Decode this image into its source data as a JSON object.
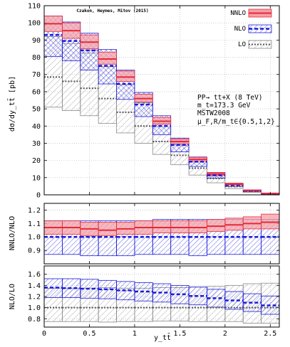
{
  "chart_data": [
    {
      "type": "bar",
      "panel": "main",
      "ylabel": "dσ/dy_tt̄ [pb]",
      "ylim": [
        0,
        110
      ],
      "yticks": [
        0,
        10,
        20,
        30,
        40,
        50,
        60,
        70,
        80,
        90,
        100,
        110
      ],
      "xlim": [
        0,
        2.6
      ],
      "bin_edges": [
        0,
        0.2,
        0.4,
        0.6,
        0.8,
        1.0,
        1.2,
        1.4,
        1.6,
        1.8,
        2.0,
        2.2,
        2.4,
        2.6
      ],
      "grid": true,
      "legend_position": "top-right",
      "credit": "Czakon, Heymes, Mitov (2015)",
      "info_lines": [
        "PP→ tt+X (8 TeV)",
        "m_t=173.3 GeV",
        "MSTW2008",
        "μ_F,R/m_t∈{0.5,1,2}"
      ],
      "series": [
        {
          "name": "NNLO",
          "color": "#e8283a",
          "central": [
            99.5,
            95.5,
            88.8,
            79.0,
            68.5,
            56.0,
            42.8,
            31.0,
            20.6,
            12.2,
            6.2,
            2.6,
            0.8
          ],
          "low": [
            95.0,
            91.0,
            85.0,
            76.0,
            66.0,
            54.0,
            41.0,
            29.5,
            19.5,
            11.5,
            5.8,
            2.3,
            0.6
          ],
          "high": [
            104.0,
            100.0,
            93.0,
            83.0,
            72.0,
            58.5,
            45.0,
            32.5,
            21.8,
            13.0,
            6.8,
            2.9,
            1.0
          ]
        },
        {
          "name": "NLO",
          "color": "#1a1adc",
          "central": [
            93.0,
            89.5,
            84.0,
            75.0,
            64.5,
            52.5,
            40.0,
            29.0,
            19.3,
            11.3,
            5.7,
            2.3,
            0.7
          ],
          "low": [
            80.5,
            78.0,
            72.5,
            64.5,
            55.5,
            45.5,
            35.0,
            25.0,
            16.5,
            9.8,
            4.9,
            2.0,
            0.5
          ],
          "high": [
            104.0,
            100.5,
            94.0,
            84.5,
            72.5,
            59.5,
            46.0,
            33.0,
            22.0,
            13.0,
            6.5,
            2.7,
            0.9
          ]
        },
        {
          "name": "LO",
          "color": "#888888",
          "central": [
            68.5,
            66.0,
            62.0,
            56.0,
            48.0,
            40.0,
            31.0,
            23.0,
            15.5,
            9.5,
            4.8,
            2.0,
            0.6
          ],
          "low": [
            51.0,
            49.0,
            46.0,
            41.5,
            36.0,
            30.0,
            23.5,
            17.5,
            11.5,
            7.0,
            3.6,
            1.4,
            0.4
          ],
          "high": [
            92.0,
            88.0,
            82.5,
            74.5,
            64.0,
            53.5,
            41.5,
            30.5,
            20.5,
            12.5,
            6.3,
            2.6,
            0.8
          ]
        }
      ]
    },
    {
      "type": "bar",
      "panel": "ratio_nnlo_nlo",
      "ylabel": "NNLO/NLO",
      "ylim": [
        0.8,
        1.25
      ],
      "yticks": [
        0.9,
        1.0,
        1.1,
        1.2
      ],
      "xlim": [
        0,
        2.6
      ],
      "grid": true,
      "series": [
        {
          "name": "NNLO",
          "color": "#e8283a",
          "central": [
            1.07,
            1.07,
            1.06,
            1.05,
            1.06,
            1.07,
            1.07,
            1.07,
            1.07,
            1.08,
            1.09,
            1.1,
            1.11
          ],
          "low": [
            1.02,
            1.02,
            1.01,
            1.01,
            1.02,
            1.02,
            1.03,
            1.03,
            1.03,
            1.04,
            1.05,
            1.06,
            1.06
          ],
          "high": [
            1.12,
            1.12,
            1.11,
            1.11,
            1.11,
            1.12,
            1.12,
            1.12,
            1.12,
            1.13,
            1.14,
            1.15,
            1.17
          ]
        },
        {
          "name": "NLO",
          "color": "#1a1adc",
          "central": [
            1.0,
            1.0,
            1.0,
            1.0,
            1.0,
            1.0,
            1.0,
            1.0,
            1.0,
            1.0,
            1.0,
            1.0,
            1.0
          ],
          "low": [
            0.87,
            0.87,
            0.86,
            0.86,
            0.86,
            0.87,
            0.87,
            0.87,
            0.86,
            0.87,
            0.87,
            0.87,
            0.87
          ],
          "high": [
            1.12,
            1.12,
            1.12,
            1.12,
            1.12,
            1.12,
            1.13,
            1.13,
            1.13,
            1.13,
            1.13,
            1.13,
            1.13
          ]
        }
      ]
    },
    {
      "type": "bar",
      "panel": "ratio_nlo_lo",
      "ylabel": "NLO/LO",
      "ylim": [
        0.65,
        1.75
      ],
      "yticks": [
        0.8,
        1.0,
        1.2,
        1.4,
        1.6
      ],
      "xlabel": "y_tt̄",
      "xticks": [
        0,
        0.5,
        1,
        1.5,
        2,
        2.5
      ],
      "xlim": [
        0,
        2.6
      ],
      "grid": true,
      "series": [
        {
          "name": "NLO",
          "color": "#1a1adc",
          "central": [
            1.36,
            1.35,
            1.34,
            1.33,
            1.31,
            1.29,
            1.27,
            1.24,
            1.21,
            1.17,
            1.13,
            1.09,
            1.04
          ],
          "low": [
            1.18,
            1.18,
            1.17,
            1.16,
            1.14,
            1.12,
            1.1,
            1.07,
            1.05,
            1.01,
            0.97,
            0.93,
            0.88
          ],
          "high": [
            1.52,
            1.52,
            1.51,
            1.49,
            1.47,
            1.45,
            1.43,
            1.4,
            1.37,
            1.33,
            1.29,
            1.25,
            1.21
          ]
        },
        {
          "name": "LO",
          "color": "#888888",
          "central": [
            1.0,
            1.0,
            1.0,
            1.0,
            1.0,
            1.0,
            1.0,
            1.0,
            1.0,
            1.0,
            1.0,
            1.0,
            1.0
          ],
          "low": [
            0.75,
            0.75,
            0.75,
            0.74,
            0.75,
            0.75,
            0.76,
            0.76,
            0.75,
            0.75,
            0.75,
            0.72,
            0.72
          ],
          "high": [
            1.35,
            1.35,
            1.35,
            1.36,
            1.35,
            1.35,
            1.36,
            1.36,
            1.37,
            1.38,
            1.4,
            1.43,
            1.44
          ]
        }
      ]
    }
  ]
}
